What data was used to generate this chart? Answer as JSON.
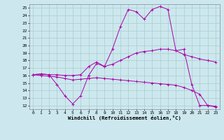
{
  "xlabel": "Windchill (Refroidissement éolien,°C)",
  "background_color": "#cce8ee",
  "grid_color": "#aacccc",
  "line_color": "#aa00aa",
  "xlim": [
    -0.5,
    23.5
  ],
  "ylim": [
    11.5,
    25.5
  ],
  "yticks": [
    12,
    13,
    14,
    15,
    16,
    17,
    18,
    19,
    20,
    21,
    22,
    23,
    24,
    25
  ],
  "xticks": [
    0,
    1,
    2,
    3,
    4,
    5,
    6,
    7,
    8,
    9,
    10,
    11,
    12,
    13,
    14,
    15,
    16,
    17,
    18,
    19,
    20,
    21,
    22,
    23
  ],
  "line1_x": [
    0,
    1,
    2,
    3,
    4,
    5,
    6,
    7,
    8,
    9,
    10,
    11,
    12,
    13,
    14,
    15,
    16,
    17,
    18,
    19,
    20,
    21,
    22,
    23
  ],
  "line1_y": [
    16.1,
    16.2,
    16.1,
    14.8,
    13.3,
    12.2,
    13.3,
    16.0,
    17.6,
    17.2,
    19.5,
    22.5,
    24.8,
    24.5,
    23.5,
    24.8,
    25.2,
    24.8,
    19.3,
    19.5,
    14.8,
    12.0,
    12.0,
    11.8
  ],
  "line2_x": [
    0,
    1,
    2,
    3,
    4,
    5,
    6,
    7,
    8,
    9,
    10,
    11,
    12,
    13,
    14,
    15,
    16,
    17,
    18,
    19,
    20,
    21,
    22,
    23
  ],
  "line2_y": [
    16.1,
    16.2,
    16.1,
    16.1,
    16.0,
    16.0,
    16.1,
    17.2,
    17.8,
    17.2,
    17.5,
    18.0,
    18.5,
    19.0,
    19.2,
    19.3,
    19.5,
    19.5,
    19.3,
    18.8,
    18.5,
    18.2,
    18.0,
    17.8
  ],
  "line3_x": [
    0,
    1,
    2,
    3,
    4,
    5,
    6,
    7,
    8,
    9,
    10,
    11,
    12,
    13,
    14,
    15,
    16,
    17,
    18,
    19,
    20,
    21,
    22,
    23
  ],
  "line3_y": [
    16.1,
    16.0,
    15.9,
    15.8,
    15.6,
    15.4,
    15.5,
    15.6,
    15.7,
    15.6,
    15.5,
    15.4,
    15.3,
    15.2,
    15.1,
    15.0,
    14.9,
    14.8,
    14.7,
    14.4,
    14.0,
    13.5,
    12.0,
    11.9
  ]
}
